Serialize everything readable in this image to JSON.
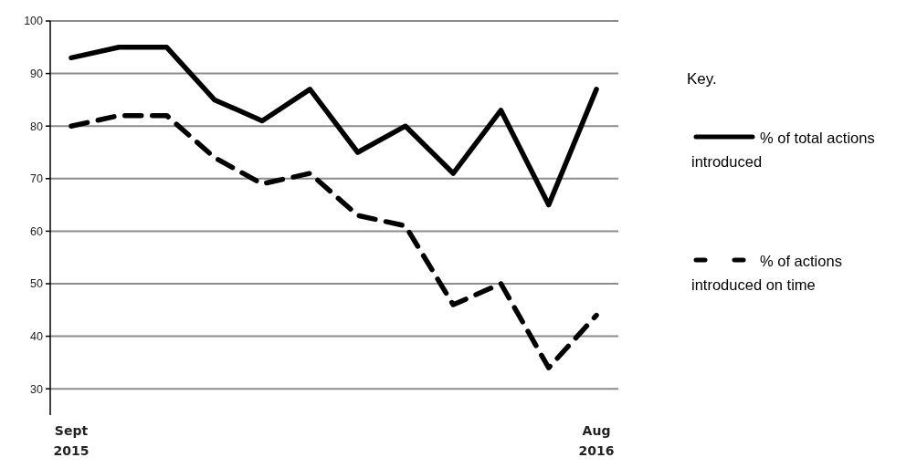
{
  "chart_data": {
    "type": "line",
    "categories": [
      "Sept\n2015",
      null,
      null,
      null,
      null,
      null,
      null,
      null,
      null,
      null,
      null,
      "Aug\n2016"
    ],
    "series": [
      {
        "name": "% of total actions introduced",
        "color": "#000000",
        "line_style": "solid",
        "values": [
          93,
          95,
          95,
          85,
          81,
          87,
          75,
          80,
          71,
          83,
          65,
          87
        ]
      },
      {
        "name": "% of actions introduced on time",
        "color": "#000000",
        "line_style": "dashed",
        "values": [
          80,
          82,
          82,
          74,
          69,
          71,
          63,
          61,
          46,
          50,
          34,
          44
        ]
      }
    ],
    "ylim": [
      25,
      100
    ],
    "yticks": [
      30,
      40,
      50,
      60,
      70,
      80,
      90,
      100
    ],
    "grid": "y",
    "legend": "right",
    "legend_title": "Key.",
    "marker": "none"
  }
}
